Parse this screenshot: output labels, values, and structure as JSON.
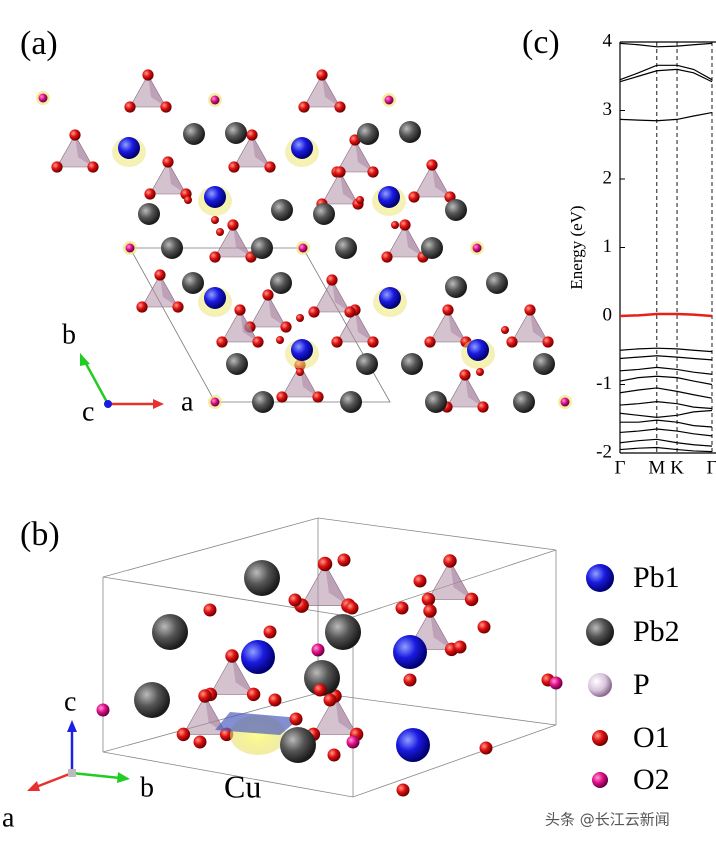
{
  "figure": {
    "panel_a": {
      "label": "(a)",
      "axes": [
        "a",
        "b",
        "c"
      ]
    },
    "panel_b": {
      "label": "(b)",
      "axes": [
        "a",
        "b",
        "c"
      ],
      "annotation": "Cu",
      "legend": [
        "Pb1",
        "Pb2",
        "P",
        "O1",
        "O2"
      ]
    },
    "watermark": "头条 @长江云新闻"
  },
  "chart_data": {
    "type": "line",
    "label": "(c)",
    "ylabel": "Energy (eV)",
    "x": [
      0,
      0.5,
      1,
      1.55,
      2,
      2.5
    ],
    "xlim": [
      0,
      2.5
    ],
    "xticks": [
      {
        "value": 0,
        "label": "Γ"
      },
      {
        "value": 1,
        "label": "M"
      },
      {
        "value": 1.55,
        "label": "K"
      },
      {
        "value": 2.5,
        "label": "Γ"
      }
    ],
    "ylim": [
      -2,
      4
    ],
    "yticks": [
      -2,
      -1,
      0,
      1,
      2,
      3,
      4
    ],
    "series": [
      {
        "color": "#000000",
        "values": [
          3.98,
          3.96,
          3.93,
          3.94,
          3.96,
          3.98
        ]
      },
      {
        "color": "#000000",
        "values": [
          3.45,
          3.55,
          3.66,
          3.66,
          3.6,
          3.45
        ]
      },
      {
        "color": "#000000",
        "values": [
          3.42,
          3.5,
          3.58,
          3.6,
          3.55,
          3.42
        ]
      },
      {
        "color": "#000000",
        "values": [
          2.87,
          2.86,
          2.85,
          2.87,
          2.92,
          2.97
        ]
      },
      {
        "color": "#e8201a",
        "values": [
          0,
          0.01,
          0.03,
          0.03,
          0.02,
          0
        ]
      },
      {
        "color": "#000000",
        "values": [
          -0.5,
          -0.48,
          -0.47,
          -0.48,
          -0.5,
          -0.52
        ]
      },
      {
        "color": "#000000",
        "values": [
          -0.62,
          -0.6,
          -0.58,
          -0.6,
          -0.62,
          -0.64
        ]
      },
      {
        "color": "#000000",
        "values": [
          -0.8,
          -0.78,
          -0.75,
          -0.78,
          -0.82,
          -0.85
        ]
      },
      {
        "color": "#000000",
        "values": [
          -0.95,
          -0.9,
          -0.88,
          -0.9,
          -0.95,
          -1.0
        ]
      },
      {
        "color": "#000000",
        "values": [
          -1.12,
          -1.08,
          -1.05,
          -1.1,
          -1.15,
          -1.2
        ]
      },
      {
        "color": "#000000",
        "values": [
          -1.3,
          -1.28,
          -1.25,
          -1.28,
          -1.33,
          -1.35
        ]
      },
      {
        "color": "#000000",
        "values": [
          -1.42,
          -1.45,
          -1.48,
          -1.45,
          -1.4,
          -1.38
        ]
      },
      {
        "color": "#000000",
        "values": [
          -1.55,
          -1.55,
          -1.52,
          -1.55,
          -1.6,
          -1.62
        ]
      },
      {
        "color": "#000000",
        "values": [
          -1.7,
          -1.68,
          -1.65,
          -1.68,
          -1.72,
          -1.75
        ]
      },
      {
        "color": "#000000",
        "values": [
          -1.85,
          -1.82,
          -1.8,
          -1.85,
          -1.88,
          -1.9
        ]
      },
      {
        "color": "#000000",
        "values": [
          -1.95,
          -1.93,
          -1.92,
          -1.95,
          -1.97,
          -1.98
        ]
      }
    ]
  }
}
